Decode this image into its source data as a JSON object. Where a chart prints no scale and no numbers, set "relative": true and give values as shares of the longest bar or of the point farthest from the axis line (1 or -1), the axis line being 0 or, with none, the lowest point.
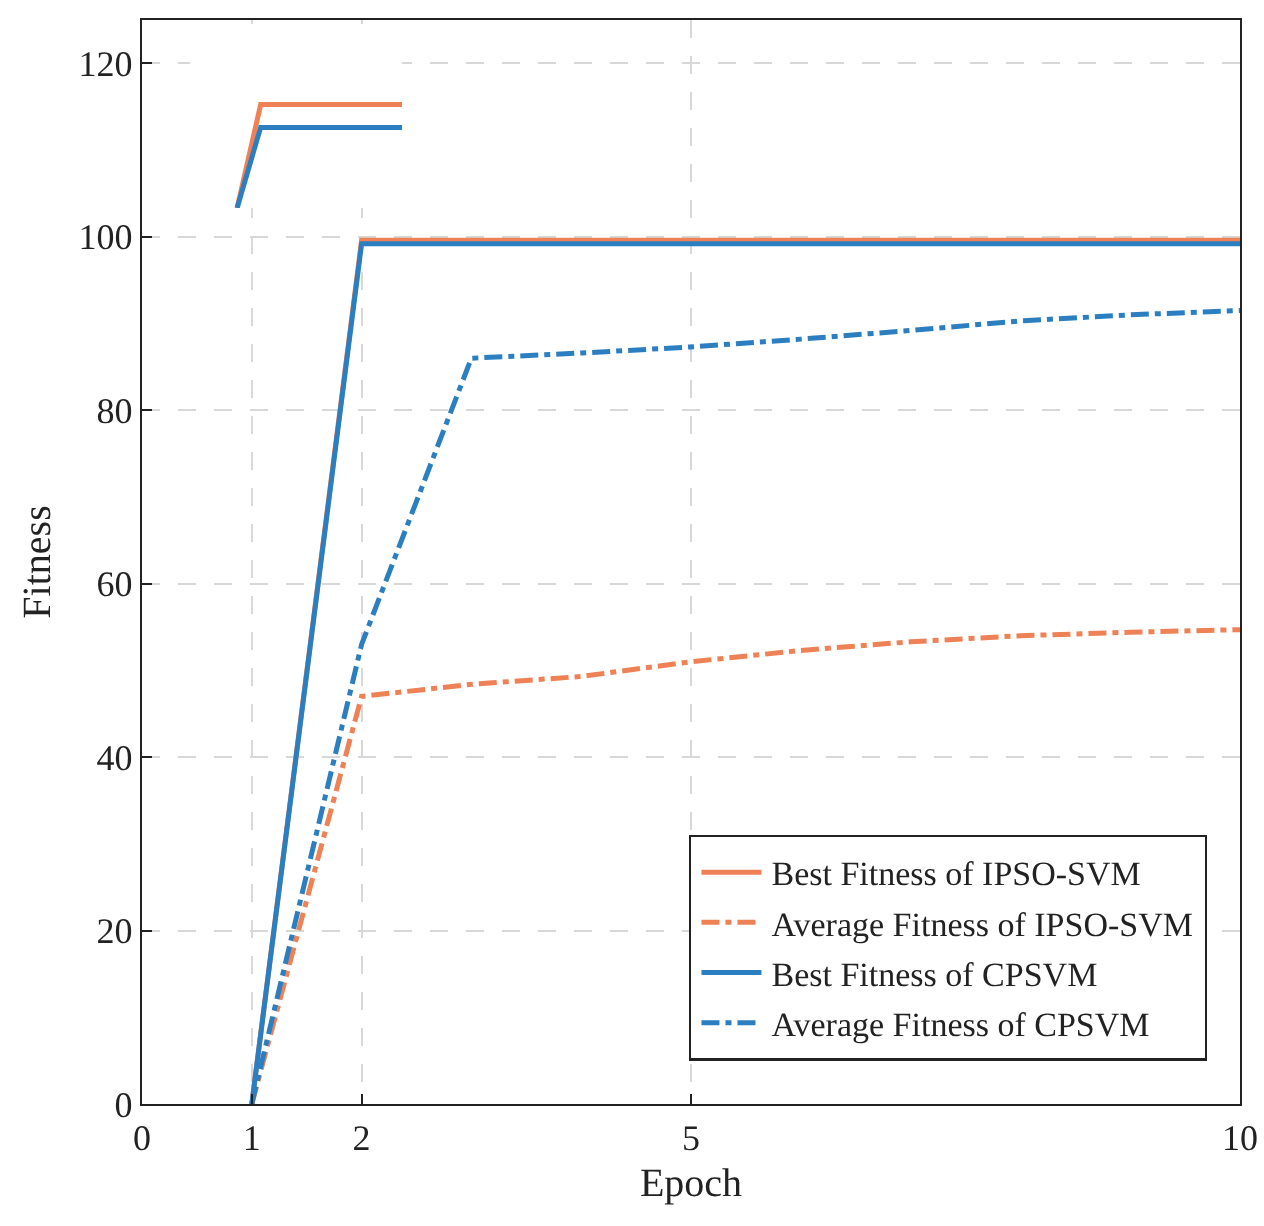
{
  "chart_data": [
    {
      "type": "line",
      "xlabel": "Epoch",
      "ylabel": "Fitness",
      "xlim": [
        0,
        10
      ],
      "xticks": [
        0,
        1,
        2,
        5,
        10
      ],
      "ylim": [
        0,
        125
      ],
      "yticks": [
        0,
        20,
        40,
        60,
        80,
        100,
        120
      ],
      "grid": true,
      "legend": "bottom right",
      "series": [
        {
          "name": "Best Fitness of IPSO-SVM",
          "color": "#ee8155",
          "line_style": "solid",
          "x": [
            1,
            2,
            3,
            4,
            5,
            6,
            7,
            8,
            9,
            10
          ],
          "values": [
            0,
            99.6,
            99.6,
            99.6,
            99.6,
            99.6,
            99.6,
            99.6,
            99.6,
            99.6
          ]
        },
        {
          "name": "Average Fitness of IPSO-SVM",
          "color": "#ee8155",
          "line_style": "dashed",
          "x": [
            1,
            2,
            3,
            4,
            5,
            6,
            7,
            8,
            9,
            10
          ],
          "values": [
            0,
            47,
            48.4,
            49.3,
            51,
            52.3,
            53.3,
            54,
            54.4,
            54.7
          ]
        },
        {
          "name": "Best Fitness of CPSVM",
          "color": "#2b7fc1",
          "line_style": "solid",
          "x": [
            1,
            2,
            3,
            4,
            5,
            6,
            7,
            8,
            9,
            10
          ],
          "values": [
            0,
            99.2,
            99.2,
            99.2,
            99.2,
            99.2,
            99.2,
            99.2,
            99.2,
            99.2
          ]
        },
        {
          "name": "Average Fitness of CPSVM",
          "color": "#2b7fc1",
          "line_style": "dashed",
          "x": [
            1,
            2,
            3,
            4,
            5,
            6,
            7,
            8,
            9,
            10
          ],
          "values": [
            0,
            53,
            86,
            86.6,
            87.3,
            88.2,
            89.2,
            90.3,
            91,
            91.5
          ]
        }
      ]
    },
    {
      "type": "line",
      "relative": true,
      "categories": [
        null,
        null,
        null,
        null,
        null,
        null,
        null,
        null,
        null,
        null
      ],
      "series": [
        {
          "color": "#ee8155",
          "values": [
            null,
            null,
            0,
            1,
            1,
            1,
            1,
            1,
            1,
            1
          ]
        },
        {
          "color": "#2b7fc1",
          "values": [
            null,
            null,
            0,
            0.78,
            0.78,
            0.78,
            0.78,
            0.78,
            0.78,
            0.78
          ]
        }
      ]
    }
  ]
}
